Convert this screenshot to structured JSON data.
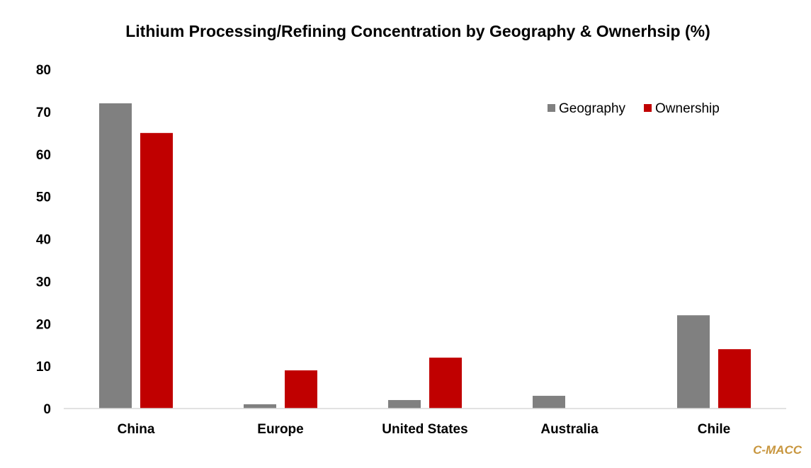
{
  "chart_data": {
    "type": "bar",
    "title": "Lithium Processing/Refining Concentration by Geography & Ownerhsip (%)",
    "categories": [
      "China",
      "Europe",
      "United States",
      "Australia",
      "Chile"
    ],
    "series": [
      {
        "name": "Geography",
        "color": "#808080",
        "values": [
          72,
          1,
          2,
          3,
          22
        ]
      },
      {
        "name": "Ownership",
        "color": "#c00000",
        "values": [
          65,
          9,
          12,
          0,
          14
        ]
      }
    ],
    "ylim": [
      0,
      80
    ],
    "yticks": [
      0,
      10,
      20,
      30,
      40,
      50,
      60,
      70,
      80
    ],
    "grid": false,
    "legend_position": "top-right"
  },
  "source_mark": "C-MACC"
}
